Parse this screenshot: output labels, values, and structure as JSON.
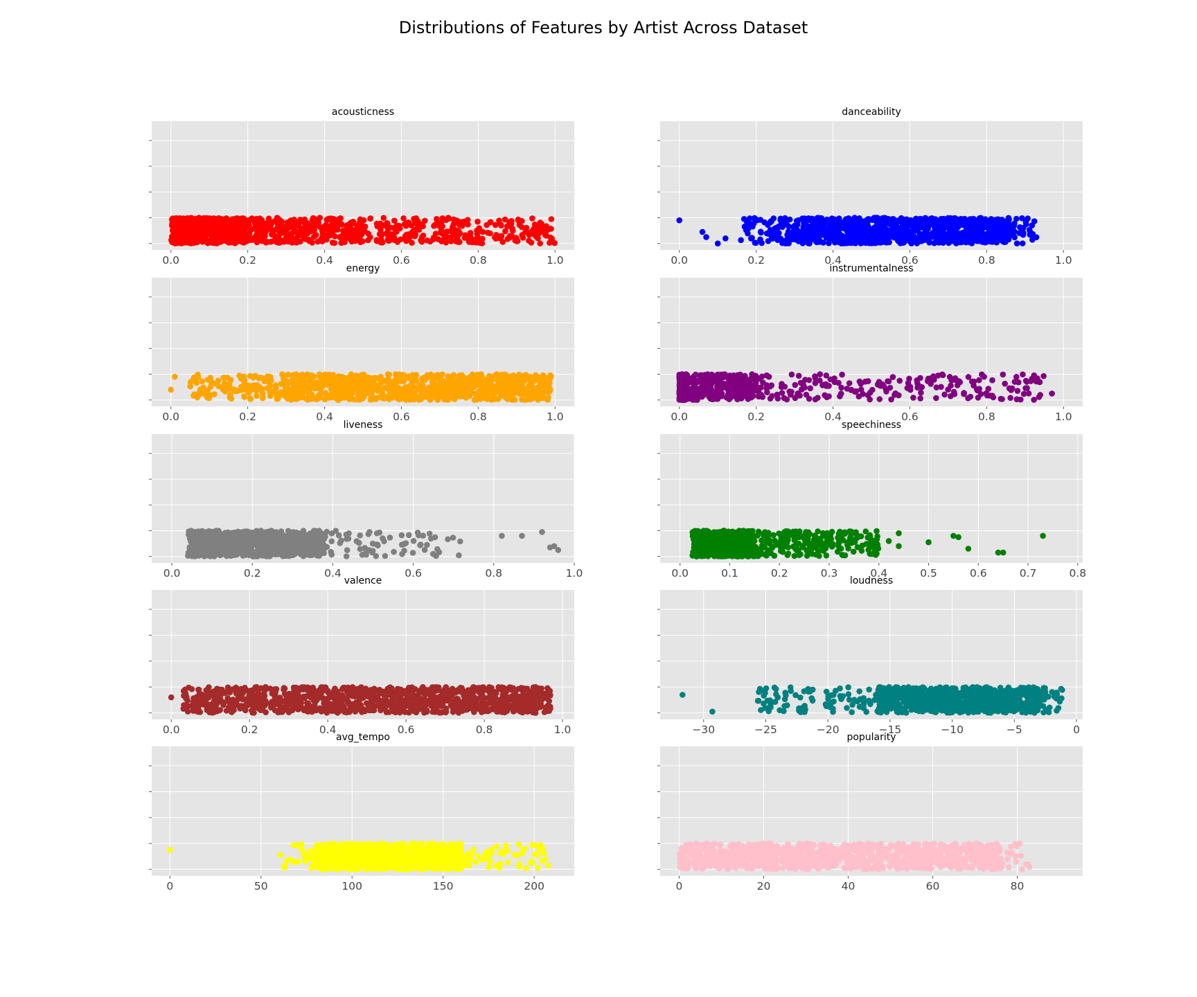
{
  "title": "Distributions of Features by Artist Across Dataset",
  "chart_data": [
    {
      "type": "scatter",
      "title": "acousticness",
      "color": "#ff0000",
      "xlim": [
        -0.05,
        1.05
      ],
      "xticks": [
        0.0,
        0.2,
        0.4,
        0.6,
        0.8,
        1.0
      ],
      "xtick_labels": [
        "0.0",
        "0.2",
        "0.4",
        "0.6",
        "0.8",
        "1.0"
      ],
      "ylim": [
        -0.05,
        0.95
      ],
      "yticks": [
        0,
        0.2,
        0.4,
        0.6,
        0.8
      ],
      "y_band": [
        0,
        0.2
      ],
      "grid": true,
      "groups": [
        {
          "range": [
            0.0,
            0.2
          ],
          "count": 620
        },
        {
          "range": [
            0.2,
            0.5
          ],
          "count": 320
        },
        {
          "range": [
            0.5,
            1.0
          ],
          "count": 260
        }
      ],
      "outliers": []
    },
    {
      "type": "scatter",
      "title": "danceability",
      "color": "#0000ff",
      "xlim": [
        -0.05,
        1.05
      ],
      "xticks": [
        0.0,
        0.2,
        0.4,
        0.6,
        0.8,
        1.0
      ],
      "xtick_labels": [
        "0.0",
        "0.2",
        "0.4",
        "0.6",
        "0.8",
        "1.0"
      ],
      "ylim": [
        -0.05,
        0.95
      ],
      "yticks": [
        0,
        0.2,
        0.4,
        0.6,
        0.8
      ],
      "y_band": [
        0,
        0.2
      ],
      "grid": true,
      "groups": [
        {
          "range": [
            0.16,
            0.32
          ],
          "count": 90
        },
        {
          "range": [
            0.32,
            0.86
          ],
          "count": 950
        },
        {
          "range": [
            0.86,
            0.93
          ],
          "count": 30
        }
      ],
      "outliers": [
        [
          0.0,
          0.18
        ],
        [
          0.06,
          0.09
        ],
        [
          0.07,
          0.05
        ],
        [
          0.1,
          0.0
        ],
        [
          0.12,
          0.04
        ]
      ]
    },
    {
      "type": "scatter",
      "title": "energy",
      "color": "#ffa500",
      "xlim": [
        -0.05,
        1.05
      ],
      "xticks": [
        0.0,
        0.2,
        0.4,
        0.6,
        0.8,
        1.0
      ],
      "xtick_labels": [
        "0.0",
        "0.2",
        "0.4",
        "0.6",
        "0.8",
        "1.0"
      ],
      "ylim": [
        -0.05,
        0.95
      ],
      "yticks": [
        0,
        0.2,
        0.4,
        0.6,
        0.8
      ],
      "y_band": [
        0,
        0.2
      ],
      "grid": true,
      "groups": [
        {
          "range": [
            0.05,
            0.3
          ],
          "count": 130
        },
        {
          "range": [
            0.3,
            0.99
          ],
          "count": 950
        }
      ],
      "outliers": [
        [
          0.0,
          0.08
        ],
        [
          0.01,
          0.18
        ]
      ]
    },
    {
      "type": "scatter",
      "title": "instrumentalness",
      "color": "#800080",
      "xlim": [
        -0.05,
        1.05
      ],
      "xticks": [
        0.0,
        0.2,
        0.4,
        0.6,
        0.8,
        1.0
      ],
      "xtick_labels": [
        "0.0",
        "0.2",
        "0.4",
        "0.6",
        "0.8",
        "1.0"
      ],
      "ylim": [
        -0.05,
        0.95
      ],
      "yticks": [
        0,
        0.2,
        0.4,
        0.6,
        0.8
      ],
      "y_band": [
        0,
        0.2
      ],
      "grid": true,
      "groups": [
        {
          "range": [
            0.0,
            0.02
          ],
          "count": 500
        },
        {
          "range": [
            0.02,
            0.2
          ],
          "count": 300
        },
        {
          "range": [
            0.2,
            0.95
          ],
          "count": 200
        }
      ],
      "outliers": [
        [
          0.97,
          0.05
        ]
      ]
    },
    {
      "type": "scatter",
      "title": "liveness",
      "color": "#808080",
      "xlim": [
        -0.05,
        1.0
      ],
      "xticks": [
        0.0,
        0.2,
        0.4,
        0.6,
        0.8,
        1.0
      ],
      "xtick_labels": [
        "0.0",
        "0.2",
        "0.4",
        "0.6",
        "0.8",
        "1.0"
      ],
      "ylim": [
        -0.05,
        0.95
      ],
      "yticks": [
        0,
        0.2,
        0.4,
        0.6,
        0.8
      ],
      "y_band": [
        0,
        0.2
      ],
      "grid": true,
      "groups": [
        {
          "range": [
            0.04,
            0.38
          ],
          "count": 850
        },
        {
          "range": [
            0.38,
            0.72
          ],
          "count": 70
        }
      ],
      "outliers": [
        [
          0.82,
          0.16
        ],
        [
          0.87,
          0.16
        ],
        [
          0.92,
          0.19
        ],
        [
          0.95,
          0.08
        ],
        [
          0.96,
          0.05
        ],
        [
          0.94,
          0.07
        ]
      ]
    },
    {
      "type": "scatter",
      "title": "speechiness",
      "color": "#008000",
      "xlim": [
        -0.04,
        0.81
      ],
      "xticks": [
        0.0,
        0.1,
        0.2,
        0.3,
        0.4,
        0.5,
        0.6,
        0.7,
        0.8
      ],
      "xtick_labels": [
        "0.0",
        "0.1",
        "0.2",
        "0.3",
        "0.4",
        "0.5",
        "0.6",
        "0.7",
        "0.8"
      ],
      "ylim": [
        -0.05,
        0.95
      ],
      "yticks": [
        0,
        0.2,
        0.4,
        0.6,
        0.8
      ],
      "y_band": [
        0,
        0.2
      ],
      "grid": true,
      "groups": [
        {
          "range": [
            0.025,
            0.15
          ],
          "count": 700
        },
        {
          "range": [
            0.15,
            0.4
          ],
          "count": 220
        }
      ],
      "outliers": [
        [
          0.42,
          0.12
        ],
        [
          0.44,
          0.08
        ],
        [
          0.44,
          0.18
        ],
        [
          0.5,
          0.11
        ],
        [
          0.55,
          0.16
        ],
        [
          0.56,
          0.15
        ],
        [
          0.58,
          0.06
        ],
        [
          0.64,
          0.03
        ],
        [
          0.65,
          0.03
        ],
        [
          0.73,
          0.16
        ]
      ]
    },
    {
      "type": "scatter",
      "title": "valence",
      "color": "#a52a2a",
      "xlim": [
        -0.05,
        1.03
      ],
      "xticks": [
        0.0,
        0.2,
        0.4,
        0.6,
        0.8,
        1.0
      ],
      "xtick_labels": [
        "0.0",
        "0.2",
        "0.4",
        "0.6",
        "0.8",
        "1.0"
      ],
      "ylim": [
        -0.05,
        0.95
      ],
      "yticks": [
        0,
        0.2,
        0.4,
        0.6,
        0.8
      ],
      "y_band": [
        0,
        0.2
      ],
      "grid": true,
      "groups": [
        {
          "range": [
            0.03,
            0.3
          ],
          "count": 260
        },
        {
          "range": [
            0.3,
            0.97
          ],
          "count": 900
        }
      ],
      "outliers": [
        [
          0.0,
          0.12
        ]
      ]
    },
    {
      "type": "scatter",
      "title": "loudness",
      "color": "#008080",
      "xlim": [
        -33.5,
        0.5
      ],
      "xticks": [
        -30,
        -25,
        -20,
        -15,
        -10,
        -5,
        0
      ],
      "xtick_labels": [
        "−30",
        "−25",
        "−20",
        "−15",
        "−10",
        "−5",
        "0"
      ],
      "ylim": [
        -0.05,
        0.95
      ],
      "yticks": [
        0,
        0.2,
        0.4,
        0.6,
        0.8
      ],
      "y_band": [
        0,
        0.2
      ],
      "grid": true,
      "groups": [
        {
          "range": [
            -26,
            -16
          ],
          "count": 90
        },
        {
          "range": [
            -16,
            -3
          ],
          "count": 850
        },
        {
          "range": [
            -3,
            -1
          ],
          "count": 30
        }
      ],
      "outliers": [
        [
          -31.7,
          0.14
        ],
        [
          -29.3,
          0.01
        ]
      ]
    },
    {
      "type": "scatter",
      "title": "avg_tempo",
      "color": "#ffff00",
      "xlim": [
        -10,
        222
      ],
      "xticks": [
        0,
        50,
        100,
        150,
        200
      ],
      "xtick_labels": [
        "0",
        "50",
        "100",
        "150",
        "200"
      ],
      "ylim": [
        -0.05,
        0.95
      ],
      "yticks": [
        0,
        0.2,
        0.4,
        0.6,
        0.8
      ],
      "y_band": [
        0,
        0.2
      ],
      "grid": true,
      "groups": [
        {
          "range": [
            60,
            80
          ],
          "count": 25
        },
        {
          "range": [
            80,
            160
          ],
          "count": 900
        },
        {
          "range": [
            160,
            208
          ],
          "count": 60
        }
      ],
      "outliers": [
        [
          0,
          0.15
        ]
      ]
    },
    {
      "type": "scatter",
      "title": "popularity",
      "color": "#ffc0cb",
      "xlim": [
        -4.5,
        95.5
      ],
      "xticks": [
        0,
        20,
        40,
        60,
        80
      ],
      "xtick_labels": [
        "0",
        "20",
        "40",
        "60",
        "80"
      ],
      "ylim": [
        -0.05,
        0.95
      ],
      "yticks": [
        0,
        0.2,
        0.4,
        0.6,
        0.8
      ],
      "y_band": [
        0,
        0.2
      ],
      "grid": true,
      "groups": [
        {
          "range": [
            0,
            76
          ],
          "count": 1100
        },
        {
          "range": [
            76,
            83
          ],
          "count": 20
        }
      ],
      "outliers": []
    }
  ]
}
